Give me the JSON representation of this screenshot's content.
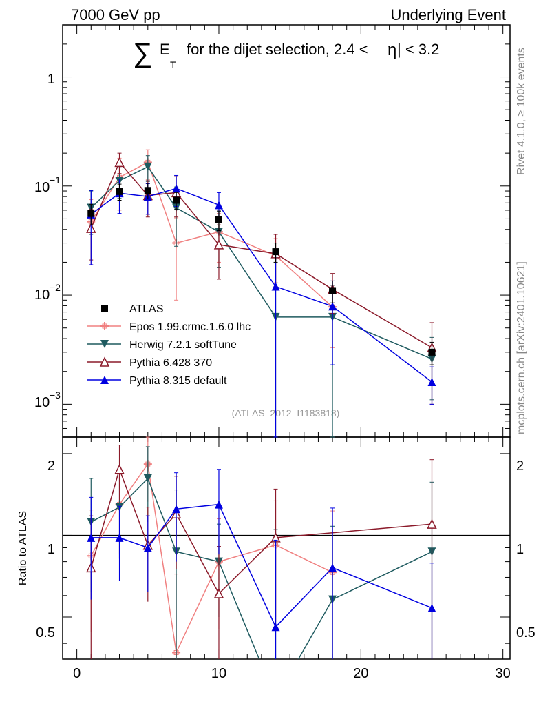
{
  "header": {
    "left": "7000 GeV pp",
    "right": "Underlying Event"
  },
  "side": {
    "rivet": "Rivet 4.1.0, ≥ 100k events",
    "mcplots": "mcplots.cern.ch [arXiv:2401.10621]"
  },
  "chart_data": {
    "type": "line",
    "title_sum": "∑",
    "title_e": "E",
    "title_t": "T",
    "title_rest": "for the dijet selection, 2.4 <",
    "title_eta": "η",
    "title_end": "| < 3.2",
    "watermark": "(ATLAS_2012_I1183818)",
    "xlim": [
      -1,
      30.5
    ],
    "xticks": [
      0,
      10,
      20,
      30
    ],
    "ylim_main": [
      0.0005,
      3.0
    ],
    "ylim_ratio": [
      0.35,
      2.3
    ],
    "main_ticks": {
      "one": "1",
      "base": "10",
      "exp1": "−1",
      "exp2": "−2",
      "exp3": "−3"
    },
    "ratio_ylabel": "Ratio to ATLAS",
    "ratio_ticks": [
      "0.5",
      "1",
      "2"
    ],
    "x": [
      1,
      3,
      5,
      7,
      10,
      14,
      18,
      25
    ],
    "series": [
      {
        "name": "ATLAS",
        "color": "#000000",
        "marker": "square",
        "values": [
          0.056,
          0.089,
          0.091,
          0.074,
          0.049,
          0.025,
          0.011,
          0.003
        ],
        "err": [
          0.012,
          0.015,
          0.015,
          0.013,
          0.01,
          0.005,
          0.0025,
          0.0007
        ],
        "ratio": [
          1,
          1,
          1,
          1,
          1,
          1,
          1,
          1
        ],
        "ratio_err": [
          0,
          0,
          0,
          0,
          0,
          0,
          0,
          0
        ]
      },
      {
        "name": "Epos 1.99.crmc.1.6.0 lhc",
        "color": "#f08080",
        "marker": "cross",
        "values": [
          0.047,
          0.12,
          0.165,
          0.03,
          0.038,
          0.023,
          0.0078,
          null
        ],
        "err": [
          0.028,
          0.06,
          0.05,
          0.021,
          0.018,
          0.01,
          0.0045,
          null
        ],
        "ratio": [
          0.84,
          1.3,
          1.83,
          0.37,
          0.8,
          0.92,
          0.73,
          null
        ],
        "ratio_err": [
          0.4,
          0.45,
          0.5,
          0.35,
          0.35,
          0.42,
          0.5,
          null
        ]
      },
      {
        "name": "Herwig 7.2.1 softTune",
        "color": "#1e5a5f",
        "marker": "tri-down",
        "values": [
          0.063,
          0.112,
          0.15,
          0.063,
          0.038,
          0.0063,
          0.0063,
          0.0026
        ],
        "err": [
          0.027,
          0.035,
          0.04,
          0.035,
          0.02,
          0.018,
          0.006,
          0.0015
        ],
        "ratio": [
          1.12,
          1.27,
          1.62,
          0.87,
          0.8,
          0.25,
          0.58,
          0.87
        ],
        "ratio_err": [
          0.5,
          0.45,
          0.5,
          0.6,
          0.3,
          0.8,
          0.5,
          0.7
        ]
      },
      {
        "name": "Pythia 6.428 370",
        "color": "#8b1a2a",
        "marker": "tri-up-open",
        "values": [
          0.041,
          0.165,
          0.082,
          0.087,
          0.029,
          0.024,
          0.0113,
          0.0033
        ],
        "err": [
          0.02,
          0.035,
          0.03,
          0.035,
          0.015,
          0.012,
          0.0045,
          0.0023
        ],
        "ratio": [
          0.76,
          1.75,
          0.92,
          1.2,
          0.61,
          0.98,
          null,
          1.1
        ],
        "ratio_err": [
          0.42,
          0.4,
          0.35,
          0.45,
          0.3,
          0.5,
          null,
          0.8
        ]
      },
      {
        "name": "Pythia 8.315 default",
        "color": "#0000e0",
        "marker": "tri-up",
        "values": [
          0.055,
          0.086,
          0.08,
          0.095,
          0.067,
          0.012,
          0.0079,
          0.0016
        ],
        "err": [
          0.036,
          0.03,
          0.025,
          0.03,
          0.02,
          0.012,
          0.0056,
          0.0006
        ],
        "ratio": [
          0.98,
          0.98,
          0.9,
          1.25,
          1.3,
          0.46,
          0.76,
          0.54
        ],
        "ratio_err": [
          0.4,
          0.3,
          0.28,
          0.45,
          0.45,
          0.5,
          0.5,
          0.25
        ]
      }
    ]
  }
}
